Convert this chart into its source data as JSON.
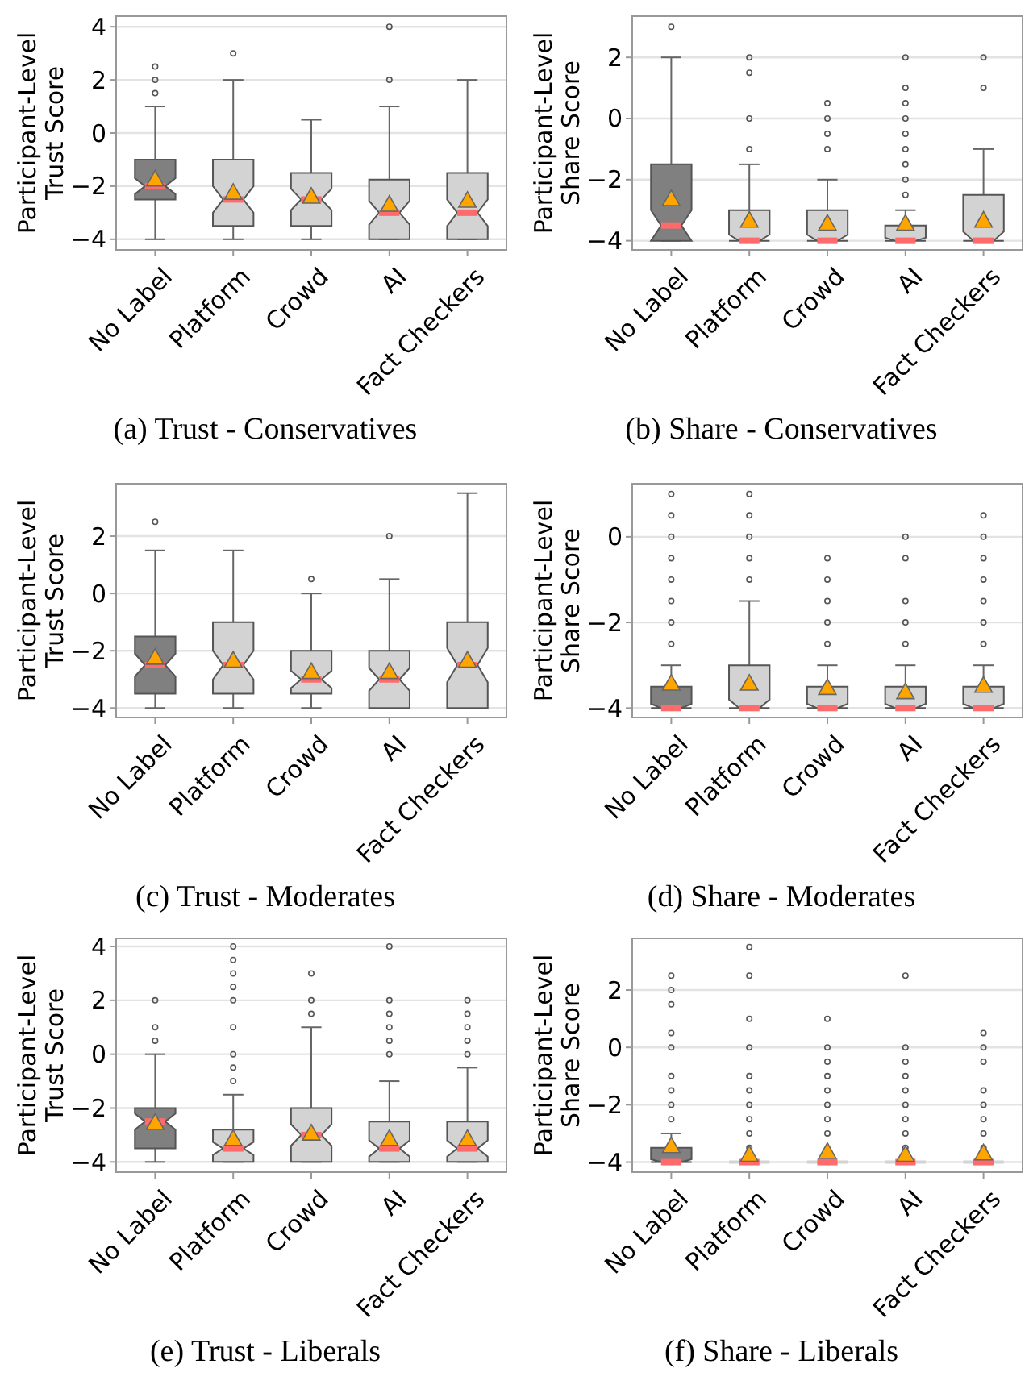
{
  "chart_data": [
    {
      "type": "box",
      "title": "(a) Trust - Conservatives",
      "ylabel": "Participant-Level Trust Score",
      "categories": [
        "No Label",
        "Platform",
        "Crowd",
        "AI",
        "Fact Checkers"
      ],
      "ylim": [
        -4.4,
        4.4
      ],
      "yticks": [
        -4,
        -2,
        0,
        2,
        4
      ],
      "grid": "y",
      "colors": [
        "#808080",
        "#d3d3d3",
        "#d3d3d3",
        "#d3d3d3",
        "#d3d3d3"
      ],
      "boxes": [
        {
          "low": -4,
          "q1": -2.5,
          "median": -2,
          "q3": -1,
          "high": 1,
          "mean": -1.7,
          "outliers": [
            1.5,
            2,
            2.5
          ]
        },
        {
          "low": -4,
          "q1": -3.5,
          "median": -2.5,
          "q3": -1,
          "high": 2,
          "mean": -2.2,
          "outliers": [
            3
          ]
        },
        {
          "low": -4,
          "q1": -3.5,
          "median": -2.5,
          "q3": -1.5,
          "high": 0.5,
          "mean": -2.35
        },
        {
          "low": -4,
          "q1": -4,
          "median": -3,
          "q3": -1.75,
          "high": 1,
          "mean": -2.65,
          "outliers": [
            2,
            4
          ]
        },
        {
          "low": -4,
          "q1": -4,
          "median": -3,
          "q3": -1.5,
          "high": 2,
          "mean": -2.5
        }
      ]
    },
    {
      "type": "box",
      "title": "(b) Share - Conservatives",
      "ylabel": "Participant-Level Share Score",
      "categories": [
        "No Label",
        "Platform",
        "Crowd",
        "AI",
        "Fact Checkers"
      ],
      "ylim": [
        -4.3,
        3.35
      ],
      "yticks": [
        -4,
        -2,
        0,
        2
      ],
      "grid": "y",
      "colors": [
        "#808080",
        "#d3d3d3",
        "#d3d3d3",
        "#d3d3d3",
        "#d3d3d3"
      ],
      "boxes": [
        {
          "low": -4,
          "q1": -4,
          "median": -3.5,
          "q3": -1.5,
          "high": 2,
          "mean": -2.6,
          "outliers": [
            3
          ]
        },
        {
          "low": -4,
          "q1": -4,
          "median": -4,
          "q3": -3,
          "high": -1.5,
          "mean": -3.3,
          "outliers": [
            -1,
            0,
            1.5,
            2
          ]
        },
        {
          "low": -4,
          "q1": -4,
          "median": -4,
          "q3": -3,
          "high": -2,
          "mean": -3.4,
          "outliers": [
            -1,
            -0.5,
            0,
            0.5
          ]
        },
        {
          "low": -4,
          "q1": -4,
          "median": -4,
          "q3": -3.5,
          "high": -3,
          "mean": -3.4,
          "outliers": [
            -2.5,
            -2,
            -1.5,
            -1,
            -0.5,
            0,
            0.5,
            1,
            2
          ]
        },
        {
          "low": -4,
          "q1": -4,
          "median": -4,
          "q3": -2.5,
          "high": -1,
          "mean": -3.3,
          "outliers": [
            1,
            2
          ]
        }
      ]
    },
    {
      "type": "box",
      "title": "(c) Trust - Moderates",
      "ylabel": "Participant-Level Trust Score",
      "categories": [
        "No Label",
        "Platform",
        "Crowd",
        "AI",
        "Fact Checkers"
      ],
      "ylim": [
        -4.33,
        3.83
      ],
      "yticks": [
        -4,
        -2,
        0,
        2
      ],
      "grid": "y",
      "colors": [
        "#808080",
        "#d3d3d3",
        "#d3d3d3",
        "#d3d3d3",
        "#d3d3d3"
      ],
      "boxes": [
        {
          "low": -4,
          "q1": -3.5,
          "median": -2.5,
          "q3": -1.5,
          "high": 1.5,
          "mean": -2.2,
          "outliers": [
            2.5
          ]
        },
        {
          "low": -4,
          "q1": -3.5,
          "median": -2.5,
          "q3": -1,
          "high": 1.5,
          "mean": -2.3
        },
        {
          "low": -4,
          "q1": -3.5,
          "median": -3,
          "q3": -2,
          "high": 0,
          "mean": -2.7,
          "outliers": [
            0.5
          ]
        },
        {
          "low": -4,
          "q1": -4,
          "median": -3,
          "q3": -2,
          "high": 0.5,
          "mean": -2.7,
          "outliers": [
            2
          ]
        },
        {
          "low": -4,
          "q1": -4,
          "median": -2.5,
          "q3": -1,
          "high": 3.5,
          "mean": -2.3
        }
      ]
    },
    {
      "type": "box",
      "title": "(d) Share - Moderates",
      "ylabel": "Participant-Level Share Score",
      "categories": [
        "No Label",
        "Platform",
        "Crowd",
        "AI",
        "Fact Checkers"
      ],
      "ylim": [
        -4.22,
        1.24
      ],
      "yticks": [
        -4,
        -2,
        0
      ],
      "grid": "y",
      "colors": [
        "#808080",
        "#d3d3d3",
        "#d3d3d3",
        "#d3d3d3",
        "#d3d3d3"
      ],
      "boxes": [
        {
          "low": -4,
          "q1": -4,
          "median": -4,
          "q3": -3.5,
          "high": -3,
          "mean": -3.4,
          "outliers": [
            -2.5,
            -2,
            -1.5,
            -1,
            -0.5,
            0,
            0.5,
            1
          ]
        },
        {
          "low": -4,
          "q1": -4,
          "median": -4,
          "q3": -3,
          "high": -1.5,
          "mean": -3.4,
          "outliers": [
            -1,
            -0.5,
            0,
            0.5,
            1
          ]
        },
        {
          "low": -4,
          "q1": -4,
          "median": -4,
          "q3": -3.5,
          "high": -3,
          "mean": -3.5,
          "outliers": [
            -2.5,
            -2,
            -1.5,
            -1,
            -0.5
          ]
        },
        {
          "low": -4,
          "q1": -4,
          "median": -4,
          "q3": -3.5,
          "high": -3,
          "mean": -3.6,
          "outliers": [
            -2.5,
            -2,
            -1.5,
            -0.5,
            0
          ]
        },
        {
          "low": -4,
          "q1": -4,
          "median": -4,
          "q3": -3.5,
          "high": -3,
          "mean": -3.45,
          "outliers": [
            -2.5,
            -2,
            -1.5,
            -1,
            -0.5,
            0,
            0.5
          ]
        }
      ]
    },
    {
      "type": "box",
      "title": "(e) Trust - Liberals",
      "ylabel": "Participant-Level Trust Score",
      "categories": [
        "No Label",
        "Platform",
        "Crowd",
        "AI",
        "Fact Checkers"
      ],
      "ylim": [
        -4.38,
        4.3
      ],
      "yticks": [
        -4,
        -2,
        0,
        2,
        4
      ],
      "grid": "y",
      "colors": [
        "#808080",
        "#d3d3d3",
        "#d3d3d3",
        "#d3d3d3",
        "#d3d3d3"
      ],
      "boxes": [
        {
          "low": -4,
          "q1": -3.5,
          "median": -2.5,
          "q3": -2,
          "high": 0,
          "mean": -2.5,
          "outliers": [
            0.5,
            1,
            2
          ]
        },
        {
          "low": -4,
          "q1": -4,
          "median": -3.5,
          "q3": -2.8,
          "high": -1.5,
          "mean": -3.1,
          "outliers": [
            -1,
            -0.5,
            0,
            1,
            2,
            2.5,
            3,
            3.5,
            4
          ]
        },
        {
          "low": -4,
          "q1": -4,
          "median": -3,
          "q3": -2,
          "high": 1,
          "mean": -2.9,
          "outliers": [
            1.5,
            2,
            3
          ]
        },
        {
          "low": -4,
          "q1": -4,
          "median": -3.5,
          "q3": -2.5,
          "high": -1,
          "mean": -3.1,
          "outliers": [
            0,
            0.5,
            1,
            1.5,
            2,
            4
          ]
        },
        {
          "low": -4,
          "q1": -4,
          "median": -3.5,
          "q3": -2.5,
          "high": -0.5,
          "mean": -3.1,
          "outliers": [
            0,
            0.5,
            1,
            1.5,
            2
          ]
        }
      ]
    },
    {
      "type": "box",
      "title": "(f) Share - Liberals",
      "ylabel": "Participant-Level Share Score",
      "categories": [
        "No Label",
        "Platform",
        "Crowd",
        "AI",
        "Fact Checkers"
      ],
      "ylim": [
        -4.35,
        3.8
      ],
      "yticks": [
        -4,
        -2,
        0,
        2
      ],
      "grid": "y",
      "colors": [
        "#808080",
        "#d3d3d3",
        "#d3d3d3",
        "#d3d3d3",
        "#d3d3d3"
      ],
      "boxes": [
        {
          "low": -4,
          "q1": -4,
          "median": -4,
          "q3": -3.5,
          "high": -3,
          "mean": -3.4,
          "outliers": [
            -2.5,
            -2,
            -1.5,
            -1,
            0,
            0.5,
            1.5,
            2,
            2.5
          ]
        },
        {
          "low": -4,
          "q1": -4,
          "median": -4,
          "q3": -4,
          "high": -4,
          "mean": -3.7,
          "outliers": [
            -3.5,
            -3,
            -2.5,
            -2,
            -1.5,
            -1,
            0,
            1,
            2.5,
            3.5
          ]
        },
        {
          "low": -4,
          "q1": -4,
          "median": -4,
          "q3": -4,
          "high": -4,
          "mean": -3.6,
          "outliers": [
            -3,
            -2.5,
            -2,
            -1.5,
            -1,
            -0.5,
            0,
            1
          ]
        },
        {
          "low": -4,
          "q1": -4,
          "median": -4,
          "q3": -4,
          "high": -4,
          "mean": -3.7,
          "outliers": [
            -3.5,
            -3,
            -2.5,
            -2,
            -1.5,
            -1,
            -0.5,
            0,
            2.5
          ]
        },
        {
          "low": -4,
          "q1": -4,
          "median": -4,
          "q3": -4,
          "high": -4,
          "mean": -3.65,
          "outliers": [
            -3.5,
            -3,
            -2.5,
            -2,
            -1.5,
            -0.5,
            0,
            0.5
          ]
        }
      ]
    }
  ]
}
